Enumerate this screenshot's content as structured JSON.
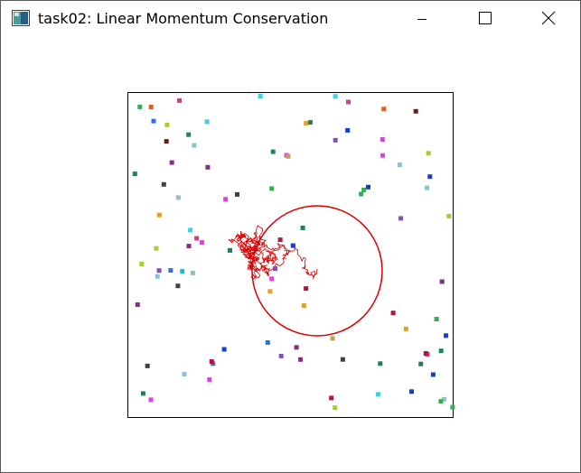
{
  "window": {
    "title": "task02: Linear Momentum Conservation",
    "icon": "app-window-icon",
    "controls": {
      "minimize": "minimize-icon",
      "maximize": "maximize-icon",
      "close": "close-icon"
    }
  },
  "simulation": {
    "box_border_color": "#000000",
    "big_ball_color": "#dd0000",
    "trail_color": "#dd0000",
    "particle_colors": [
      "#e040e0",
      "#e0a030",
      "#3070e0",
      "#20c0c0",
      "#a0d030",
      "#b01840",
      "#803080",
      "#208060",
      "#c0a060",
      "#40d0e0",
      "#602020",
      "#d04080",
      "#1040d0",
      "#30b050",
      "#e06020",
      "#8050c0",
      "#90c0d0",
      "#404040"
    ]
  }
}
